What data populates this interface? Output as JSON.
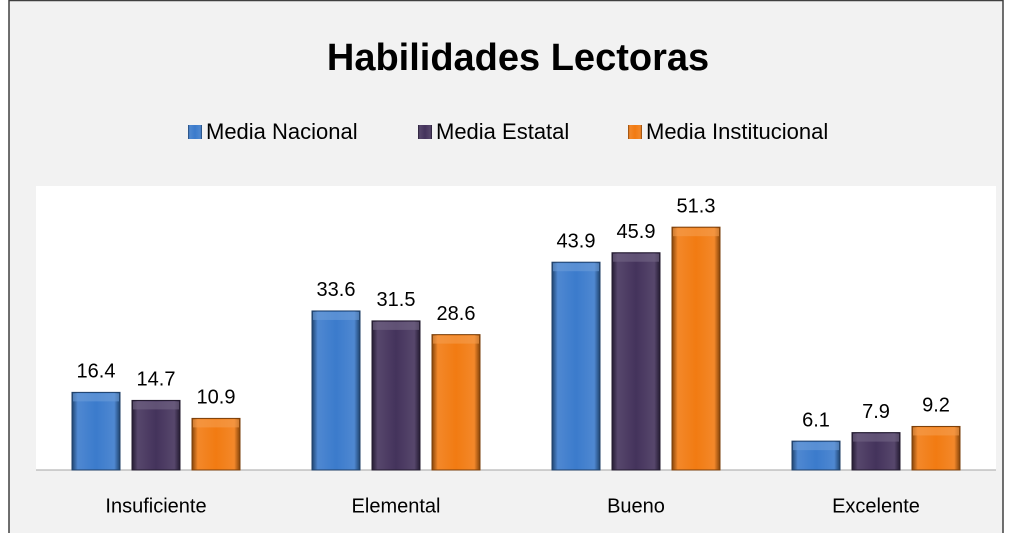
{
  "chart_data": {
    "type": "bar",
    "title": "Habilidades Lectoras",
    "categories": [
      "Insuficiente",
      "Elemental",
      "Bueno",
      "Excelente"
    ],
    "series": [
      {
        "name": "Media Nacional",
        "color": "#3b7bcc",
        "values": [
          16.4,
          33.6,
          43.9,
          6.1
        ]
      },
      {
        "name": "Media Estatal",
        "color": "#44335c",
        "values": [
          14.7,
          31.5,
          45.9,
          7.9
        ]
      },
      {
        "name": "Media Institucional",
        "color": "#f27b12",
        "values": [
          10.9,
          28.6,
          51.3,
          9.2
        ]
      }
    ],
    "ylim": [
      0,
      60
    ],
    "legend": "top"
  }
}
